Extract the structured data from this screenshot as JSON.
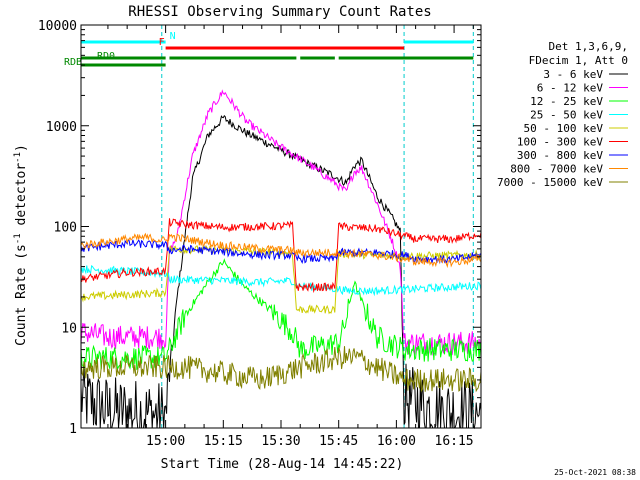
{
  "chart_data": {
    "type": "line",
    "title": "RHESSI Observing Summary Count Rates",
    "xlabel": "Start Time (28-Aug-14 14:45:22)",
    "ylabel_main": "Count Rate (s",
    "ylabel_sup1": "-1",
    "ylabel_mid": " detector",
    "ylabel_sup2": "-1",
    "ylabel_end": ")",
    "y_scale": "log",
    "ylim": [
      1,
      10000
    ],
    "xlim_minutes": [
      -7,
      97
    ],
    "x_ticks": [
      {
        "t": 15,
        "label": "15:00"
      },
      {
        "t": 30,
        "label": "15:15"
      },
      {
        "t": 45,
        "label": "15:30"
      },
      {
        "t": 60,
        "label": "15:45"
      },
      {
        "t": 75,
        "label": "16:00"
      },
      {
        "t": 90,
        "label": "16:15"
      }
    ],
    "y_ticks": [
      {
        "v": 1,
        "label": "1"
      },
      {
        "v": 10,
        "label": "10"
      },
      {
        "v": 100,
        "label": "100"
      },
      {
        "v": 1000,
        "label": "1000"
      },
      {
        "v": 10000,
        "label": "10000"
      }
    ],
    "legend_header": [
      "Det 1,3,6,9,",
      "FDecim 1, Att 0"
    ],
    "series": [
      {
        "name": "3 - 6 keV",
        "color": "#000000",
        "points": [
          [
            -7,
            2
          ],
          [
            0,
            1.5
          ],
          [
            10,
            1.4
          ],
          [
            15,
            1.3
          ],
          [
            18,
            20
          ],
          [
            22,
            300
          ],
          [
            26,
            800
          ],
          [
            30,
            1200
          ],
          [
            36,
            850
          ],
          [
            44,
            600
          ],
          [
            52,
            420
          ],
          [
            58,
            330
          ],
          [
            62,
            270
          ],
          [
            64,
            400
          ],
          [
            66,
            450
          ],
          [
            70,
            200
          ],
          [
            74,
            120
          ],
          [
            76,
            90
          ],
          [
            77,
            2
          ],
          [
            85,
            1.5
          ],
          [
            97,
            1.4
          ]
        ]
      },
      {
        "name": "6 - 12 keV",
        "color": "#ff00ff",
        "points": [
          [
            -7,
            9
          ],
          [
            0,
            8
          ],
          [
            10,
            8
          ],
          [
            15,
            8
          ],
          [
            16,
            55
          ],
          [
            18,
            80
          ],
          [
            22,
            500
          ],
          [
            26,
            1300
          ],
          [
            30,
            2200
          ],
          [
            36,
            1100
          ],
          [
            44,
            650
          ],
          [
            52,
            420
          ],
          [
            58,
            290
          ],
          [
            62,
            220
          ],
          [
            64,
            350
          ],
          [
            66,
            380
          ],
          [
            70,
            170
          ],
          [
            74,
            70
          ],
          [
            76,
            40
          ],
          [
            77,
            7
          ],
          [
            90,
            7
          ],
          [
            97,
            7
          ]
        ]
      },
      {
        "name": "12 - 25 keV",
        "color": "#00ff00",
        "points": [
          [
            -7,
            5
          ],
          [
            0,
            5
          ],
          [
            10,
            5
          ],
          [
            15,
            5
          ],
          [
            16,
            6
          ],
          [
            20,
            13
          ],
          [
            26,
            28
          ],
          [
            30,
            45
          ],
          [
            36,
            24
          ],
          [
            44,
            13
          ],
          [
            48,
            9
          ],
          [
            50,
            6
          ],
          [
            60,
            7
          ],
          [
            62,
            12
          ],
          [
            64,
            28
          ],
          [
            66,
            18
          ],
          [
            70,
            8
          ],
          [
            77,
            6
          ],
          [
            90,
            6
          ],
          [
            97,
            6
          ]
        ]
      },
      {
        "name": "25 - 50 keV",
        "color": "#00ffff",
        "points": [
          [
            -7,
            38
          ],
          [
            5,
            36
          ],
          [
            15,
            34
          ],
          [
            16,
            30
          ],
          [
            30,
            29
          ],
          [
            40,
            28
          ],
          [
            48,
            29
          ],
          [
            49,
            26
          ],
          [
            60,
            24
          ],
          [
            62,
            23
          ],
          [
            70,
            23
          ],
          [
            80,
            24
          ],
          [
            97,
            26
          ]
        ]
      },
      {
        "name": "50 - 100 keV",
        "color": "#cccc00",
        "points": [
          [
            -7,
            20
          ],
          [
            5,
            21
          ],
          [
            15,
            22
          ],
          [
            16,
            60
          ],
          [
            30,
            58
          ],
          [
            40,
            56
          ],
          [
            48,
            55
          ],
          [
            49,
            15
          ],
          [
            59,
            15
          ],
          [
            60,
            54
          ],
          [
            70,
            52
          ],
          [
            80,
            51
          ],
          [
            97,
            52
          ]
        ]
      },
      {
        "name": "100 - 300 keV",
        "color": "#ff0000",
        "points": [
          [
            -7,
            30
          ],
          [
            5,
            35
          ],
          [
            15,
            36
          ],
          [
            16,
            110
          ],
          [
            20,
            105
          ],
          [
            30,
            98
          ],
          [
            40,
            100
          ],
          [
            48,
            102
          ],
          [
            49,
            25
          ],
          [
            59,
            25
          ],
          [
            60,
            100
          ],
          [
            70,
            95
          ],
          [
            80,
            75
          ],
          [
            90,
            75
          ],
          [
            97,
            85
          ]
        ]
      },
      {
        "name": "300 - 800 keV",
        "color": "#0000ff",
        "points": [
          [
            -7,
            60
          ],
          [
            5,
            68
          ],
          [
            15,
            65
          ],
          [
            16,
            58
          ],
          [
            20,
            60
          ],
          [
            30,
            56
          ],
          [
            40,
            52
          ],
          [
            48,
            52
          ],
          [
            49,
            48
          ],
          [
            59,
            48
          ],
          [
            60,
            55
          ],
          [
            70,
            55
          ],
          [
            77,
            52
          ],
          [
            80,
            48
          ],
          [
            90,
            47
          ],
          [
            97,
            52
          ]
        ]
      },
      {
        "name": "800 - 7000 keV",
        "color": "#ff8800",
        "points": [
          [
            -7,
            65
          ],
          [
            5,
            75
          ],
          [
            10,
            78
          ],
          [
            15,
            72
          ],
          [
            16,
            80
          ],
          [
            30,
            65
          ],
          [
            40,
            60
          ],
          [
            48,
            58
          ],
          [
            49,
            55
          ],
          [
            59,
            55
          ],
          [
            60,
            55
          ],
          [
            70,
            52
          ],
          [
            77,
            48
          ],
          [
            80,
            45
          ],
          [
            90,
            44
          ],
          [
            97,
            48
          ]
        ]
      },
      {
        "name": "7000 - 15000 keV",
        "color": "#808000",
        "points": [
          [
            -7,
            4
          ],
          [
            0,
            4
          ],
          [
            10,
            4
          ],
          [
            15,
            4
          ],
          [
            20,
            4
          ],
          [
            30,
            3.5
          ],
          [
            40,
            3
          ],
          [
            50,
            4
          ],
          [
            60,
            5
          ],
          [
            65,
            5
          ],
          [
            70,
            4
          ],
          [
            77,
            3
          ],
          [
            90,
            3
          ],
          [
            97,
            3
          ]
        ]
      }
    ],
    "dashed_lines_t": [
      -7,
      14,
      77,
      95
    ],
    "flags": [
      {
        "label": "N",
        "color": "#00ffff",
        "segments": [
          [
            -7,
            15
          ],
          [
            77,
            95
          ]
        ]
      },
      {
        "label": "F",
        "color": "#ff0000",
        "segments": [
          [
            15,
            77
          ]
        ]
      },
      {
        "label": "RDB",
        "color": "#008800",
        "segments": [
          [
            -7,
            15
          ],
          [
            16,
            49
          ],
          [
            50,
            59
          ],
          [
            60,
            95
          ]
        ]
      },
      {
        "label": "RD0",
        "color": "#008800",
        "segments": [
          [
            -7,
            15
          ]
        ]
      }
    ],
    "timestamp": "25-Oct-2021 08:38"
  }
}
